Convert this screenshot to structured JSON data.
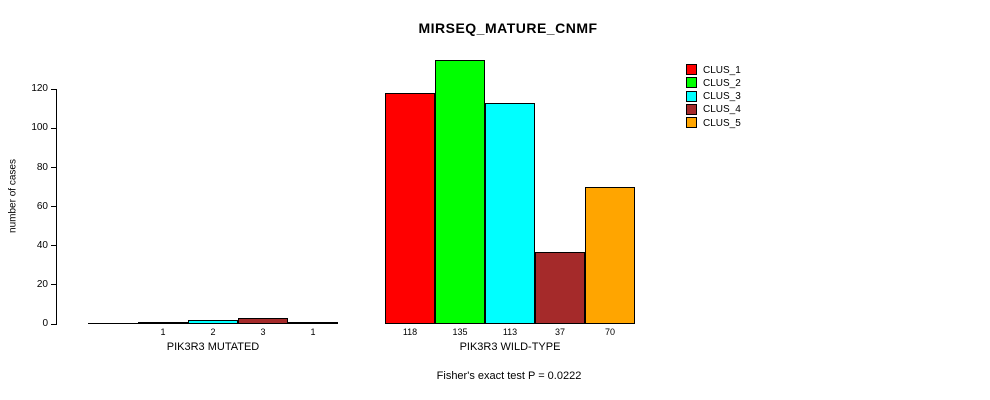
{
  "title": "MIRSEQ_MATURE_CNMF",
  "ylabel": "number of cases",
  "footer": "Fisher's exact test P = 0.0222",
  "legend": {
    "items": [
      {
        "label": "CLUS_1",
        "color": "#FF0000"
      },
      {
        "label": "CLUS_2",
        "color": "#00FF00"
      },
      {
        "label": "CLUS_3",
        "color": "#00FFFF"
      },
      {
        "label": "CLUS_4",
        "color": "#A52A2A"
      },
      {
        "label": "CLUS_5",
        "color": "#FFA500"
      }
    ]
  },
  "chart_data": {
    "type": "bar",
    "title": "MIRSEQ_MATURE_CNMF",
    "xlabel": "",
    "ylabel": "number of cases",
    "ylim": [
      0,
      135
    ],
    "yticks": [
      0,
      20,
      40,
      60,
      80,
      100,
      120
    ],
    "grid": false,
    "legend_position": "top-right",
    "clusters": [
      "CLUS_1",
      "CLUS_2",
      "CLUS_3",
      "CLUS_4",
      "CLUS_5"
    ],
    "colors": [
      "#FF0000",
      "#00FF00",
      "#00FFFF",
      "#A52A2A",
      "#FFA500"
    ],
    "groups": [
      {
        "name": "PIK3R3 MUTATED",
        "values": [
          0,
          1,
          2,
          3,
          1
        ],
        "labels": [
          "",
          "1",
          "2",
          "3",
          "1"
        ]
      },
      {
        "name": "PIK3R3 WILD-TYPE",
        "values": [
          118,
          135,
          113,
          37,
          70
        ],
        "labels": [
          "118",
          "135",
          "113",
          "37",
          "70"
        ]
      }
    ],
    "annotation": "Fisher's exact test P = 0.0222"
  }
}
